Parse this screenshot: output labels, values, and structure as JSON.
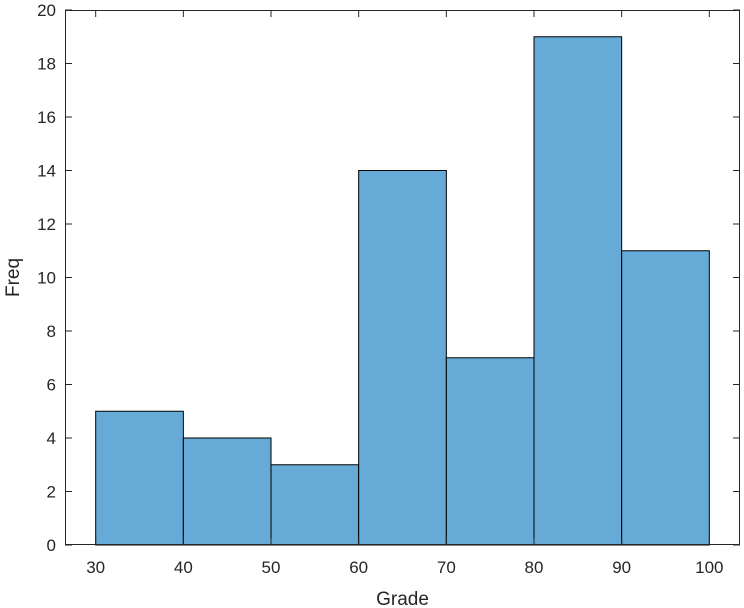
{
  "chart_data": {
    "type": "bar",
    "subtype": "histogram",
    "title": "",
    "xlabel": "Grade",
    "ylabel": "Freq",
    "bins": [
      {
        "start": 30,
        "end": 40,
        "value": 5
      },
      {
        "start": 40,
        "end": 50,
        "value": 4
      },
      {
        "start": 50,
        "end": 60,
        "value": 3
      },
      {
        "start": 60,
        "end": 70,
        "value": 14
      },
      {
        "start": 70,
        "end": 80,
        "value": 7
      },
      {
        "start": 80,
        "end": 90,
        "value": 19
      },
      {
        "start": 90,
        "end": 100,
        "value": 11
      }
    ],
    "xlim": [
      26.5,
      103.5
    ],
    "ylim": [
      0,
      20
    ],
    "x_ticks": [
      "30",
      "40",
      "50",
      "60",
      "70",
      "80",
      "90",
      "100"
    ],
    "y_ticks": [
      "0",
      "2",
      "4",
      "6",
      "8",
      "10",
      "12",
      "14",
      "16",
      "18",
      "20"
    ],
    "grid": false,
    "bar_color": "#66aad7",
    "edge_color": "#000000",
    "axis_color": "#262626"
  }
}
